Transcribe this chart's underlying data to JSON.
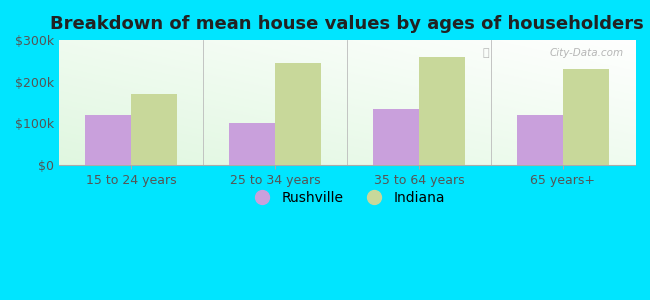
{
  "title": "Breakdown of mean house values by ages of householders",
  "categories": [
    "15 to 24 years",
    "25 to 34 years",
    "35 to 64 years",
    "65 years+"
  ],
  "rushville_values": [
    120000,
    100000,
    135000,
    120000
  ],
  "indiana_values": [
    170000,
    245000,
    260000,
    230000
  ],
  "rushville_color": "#c9a0dc",
  "indiana_color": "#c8d89a",
  "background_outer": "#00e5ff",
  "ylim": [
    0,
    300000
  ],
  "yticks": [
    0,
    100000,
    200000,
    300000
  ],
  "ytick_labels": [
    "$0",
    "$100k",
    "$200k",
    "$300k"
  ],
  "bar_width": 0.32,
  "legend_rushville": "Rushville",
  "legend_indiana": "Indiana",
  "title_fontsize": 13,
  "tick_fontsize": 9,
  "legend_fontsize": 10
}
